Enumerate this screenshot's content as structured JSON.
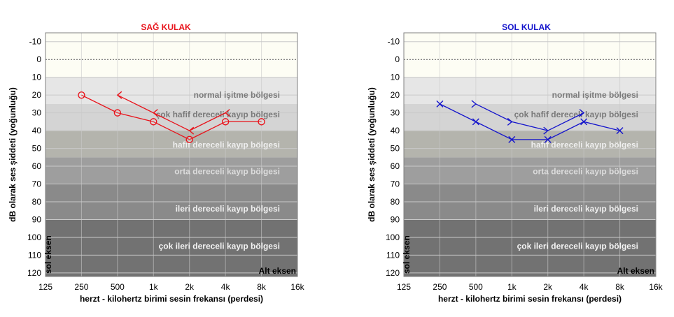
{
  "chart_data": [
    {
      "type": "line",
      "title": "SAĞ KULAK",
      "title_color": "#e8131b",
      "series_color": "#e8131b",
      "ylabel": "dB olarak ses  şiddeti (yoğunluğu)",
      "xlabel": "herzt  -  kilohertz birimi sesin frekansı (perdesi)",
      "corner_left": "sol eksen",
      "corner_bottom": "Alt eksen",
      "ylim": [
        -15,
        122
      ],
      "yticks": [
        -10,
        0,
        10,
        20,
        30,
        40,
        50,
        60,
        70,
        80,
        90,
        100,
        110,
        120
      ],
      "xticks": [
        "125",
        "250",
        "500",
        "1k",
        "2k",
        "4k",
        "8k",
        "16k"
      ],
      "zones": [
        "normal işitme bölgesi",
        "çok hafif dereceli kayıp bölgesi",
        "hafif dereceli kayıp bölgesi",
        "orta dereceli kayıp bölgesi",
        "ileri dereceli kayıp bölgesi",
        "çok ileri dereceli kayıp bölgesi"
      ],
      "series": [
        {
          "marker": "circle",
          "x": [
            "250",
            "500",
            "1k",
            "2k",
            "4k",
            "8k"
          ],
          "values": [
            20,
            30,
            35,
            45,
            35,
            35
          ]
        },
        {
          "marker": "bracket-left",
          "x": [
            "500",
            "1k",
            "2k",
            "4k"
          ],
          "values": [
            20,
            30,
            40,
            30
          ]
        }
      ]
    },
    {
      "type": "line",
      "title": "SOL KULAK",
      "title_color": "#1515cc",
      "series_color": "#1515cc",
      "ylabel": "dB olarak ses  şiddeti (yoğunluğu)",
      "xlabel": "herzt  -  kilohertz birimi sesin frekansı (perdesi)",
      "corner_left": "sol eksen",
      "corner_bottom": "Alt eksen",
      "ylim": [
        -15,
        122
      ],
      "yticks": [
        -10,
        0,
        10,
        20,
        30,
        40,
        50,
        60,
        70,
        80,
        90,
        100,
        110,
        120
      ],
      "xticks": [
        "125",
        "250",
        "500",
        "1k",
        "2k",
        "4k",
        "8k",
        "16k"
      ],
      "zones": [
        "normal işitme bölgesi",
        "çok hafif dereceli kayıp bölgesi",
        "hafif dereceli kayıp bölgesi",
        "orta dereceli kayıp bölgesi",
        "ileri dereceli kayıp bölgesi",
        "çok ileri dereceli kayıp bölgesi"
      ],
      "series": [
        {
          "marker": "x",
          "x": [
            "250",
            "500",
            "1k",
            "2k",
            "4k",
            "8k"
          ],
          "values": [
            25,
            35,
            45,
            45,
            35,
            40
          ]
        },
        {
          "marker": "bracket-right",
          "x": [
            "500",
            "1k",
            "2k",
            "4k"
          ],
          "values": [
            25,
            35,
            40,
            30
          ]
        }
      ]
    }
  ]
}
